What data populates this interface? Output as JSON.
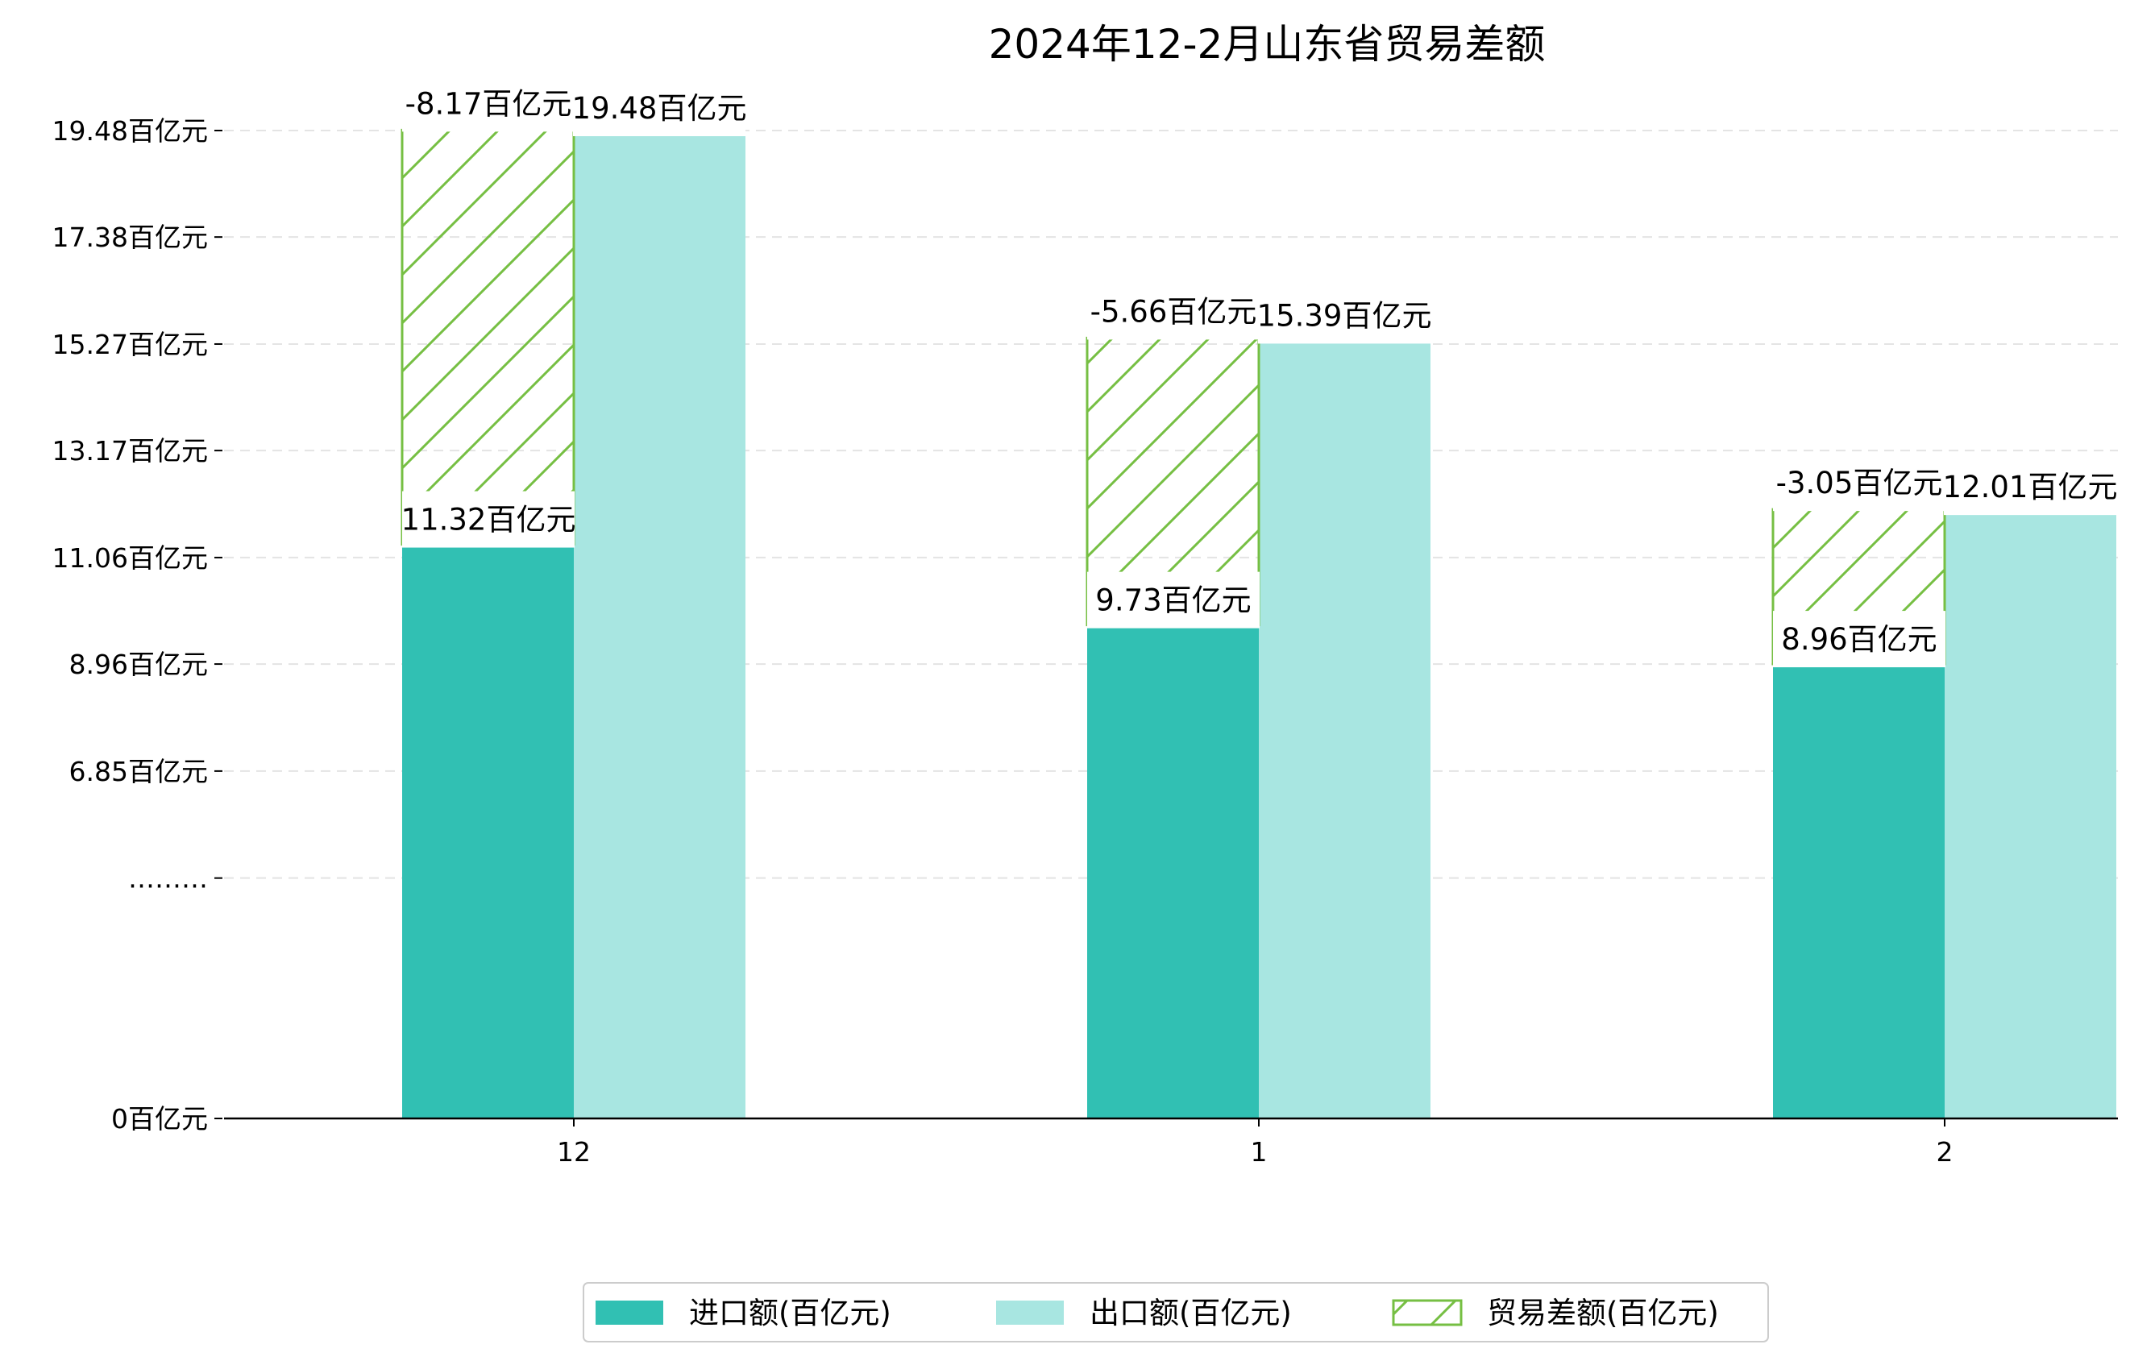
{
  "chart_data": {
    "type": "bar",
    "title": "2024年12-2月山东省贸易差额",
    "categories": [
      "12",
      "1",
      "2"
    ],
    "y_tick_labels": [
      "0百亿元",
      "………",
      "6.85百亿元",
      "8.96百亿元",
      "11.06百亿元",
      "13.17百亿元",
      "15.27百亿元",
      "17.38百亿元",
      "19.48百亿元"
    ],
    "y_tick_values": [
      0,
      4.74,
      6.85,
      8.96,
      11.06,
      13.17,
      15.27,
      17.38,
      19.48
    ],
    "ylim": [
      0,
      21.7
    ],
    "grid": "horizontal dashed",
    "legend_position": "bottom-center",
    "series": [
      {
        "name": "进口额(百亿元)",
        "values": [
          11.32,
          9.73,
          8.96
        ],
        "labels": [
          "11.32百亿元",
          "9.73百亿元",
          "8.96百亿元"
        ],
        "color": "#31c0b3"
      },
      {
        "name": "出口额(百亿元)",
        "values": [
          19.48,
          15.39,
          12.01
        ],
        "labels": [
          "19.48百亿元",
          "15.39百亿元",
          "12.01百亿元"
        ],
        "color": "#a8e6e1"
      },
      {
        "name": "贸易差额(百亿元)",
        "values": [
          -8.17,
          -5.66,
          -3.05
        ],
        "labels": [
          "-8.17百亿元",
          "-5.66百亿元",
          "-3.05百亿元"
        ],
        "color": "#76bf43"
      }
    ]
  }
}
